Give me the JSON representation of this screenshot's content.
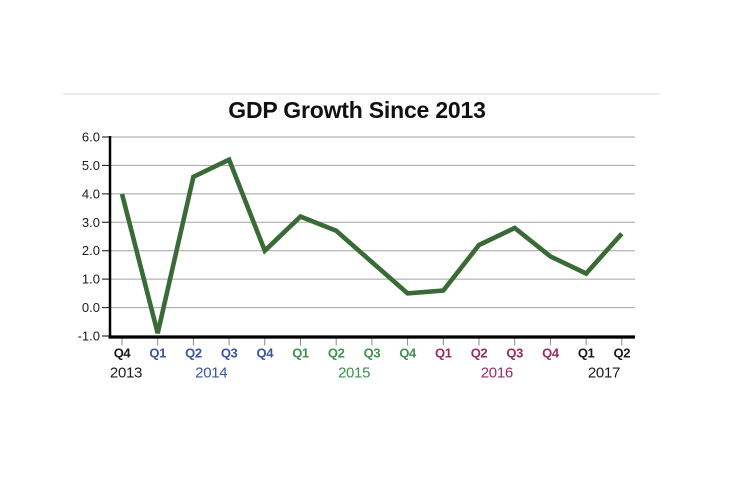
{
  "title": "GDP Growth Since 2013",
  "chart_data": {
    "type": "line",
    "title": "GDP Growth Since 2013",
    "ylabel": "",
    "xlabel": "",
    "ylim": [
      -1.0,
      6.0
    ],
    "grid": true,
    "y_ticks": [
      6.0,
      5.0,
      4.0,
      3.0,
      2.0,
      1.0,
      0.0,
      -1.0
    ],
    "y_tick_labels": [
      "6.0",
      "5.0",
      "4.0",
      "3.0",
      "2.0",
      "1.0",
      "0.0",
      "-1.0"
    ],
    "x_groups": [
      {
        "year": "2013",
        "quarters": [
          "Q4"
        ],
        "color": "#1a1a1a"
      },
      {
        "year": "2014",
        "quarters": [
          "Q1",
          "Q2",
          "Q3",
          "Q4"
        ],
        "color": "#3a55a0"
      },
      {
        "year": "2015",
        "quarters": [
          "Q1",
          "Q2",
          "Q3",
          "Q4"
        ],
        "color": "#3f9150"
      },
      {
        "year": "2016",
        "quarters": [
          "Q1",
          "Q2",
          "Q3",
          "Q4"
        ],
        "color": "#982c62"
      },
      {
        "year": "2017",
        "quarters": [
          "Q1",
          "Q2"
        ],
        "color": "#1a1a1a"
      }
    ],
    "categories": [
      "Q4 2013",
      "Q1 2014",
      "Q2 2014",
      "Q3 2014",
      "Q4 2014",
      "Q1 2015",
      "Q2 2015",
      "Q3 2015",
      "Q4 2015",
      "Q1 2016",
      "Q2 2016",
      "Q3 2016",
      "Q4 2016",
      "Q1 2017",
      "Q2 2017"
    ],
    "values": [
      4.0,
      -0.9,
      4.6,
      5.2,
      2.0,
      3.2,
      2.7,
      1.6,
      0.5,
      0.6,
      2.2,
      2.8,
      1.8,
      1.2,
      2.6
    ],
    "line_color": "#3a6b37",
    "gridline_color": "#a3a3a3",
    "axis_color": "#000000",
    "tick_color": "#8a8a8a",
    "legend": "none"
  }
}
